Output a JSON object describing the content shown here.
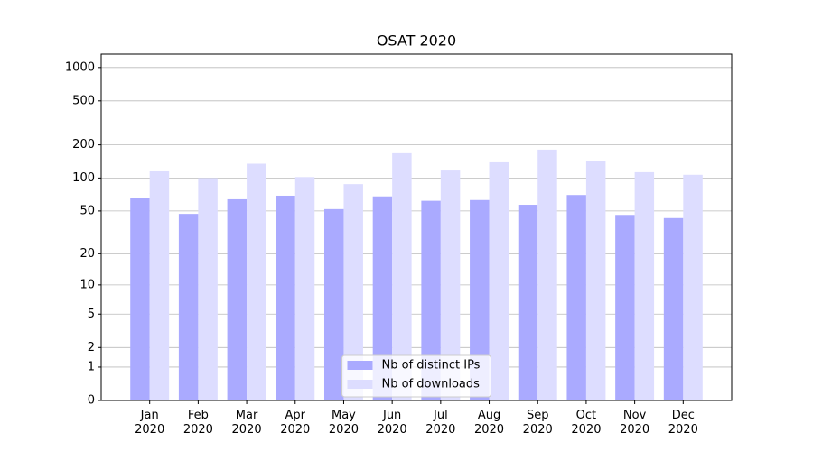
{
  "chart_data": {
    "type": "bar",
    "title": "OSAT 2020",
    "categories": [
      "Jan\n2020",
      "Feb\n2020",
      "Mar\n2020",
      "Apr\n2020",
      "May\n2020",
      "Jun\n2020",
      "Jul\n2020",
      "Aug\n2020",
      "Sep\n2020",
      "Oct\n2020",
      "Nov\n2020",
      "Dec\n2020"
    ],
    "series": [
      {
        "name": "Nb of distinct IPs",
        "color": "#aaaaff",
        "values": [
          66,
          47,
          64,
          69,
          52,
          68,
          62,
          63,
          57,
          70,
          46,
          43
        ]
      },
      {
        "name": "Nb of downloads",
        "color": "#ddddff",
        "values": [
          115,
          100,
          135,
          102,
          88,
          168,
          117,
          139,
          181,
          144,
          113,
          107
        ]
      }
    ],
    "yscale": "log1p",
    "ylim": [
      0,
      1320
    ],
    "yticks": [
      0,
      1,
      2,
      5,
      10,
      20,
      50,
      100,
      200,
      500,
      1000
    ],
    "grid": true,
    "legend": "lower center"
  }
}
